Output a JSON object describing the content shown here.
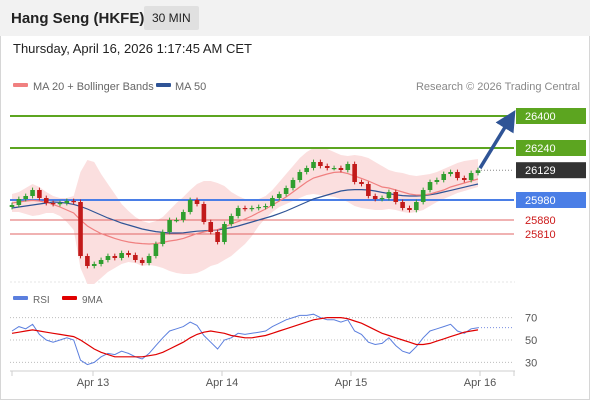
{
  "header": {
    "instrument": "Hang Seng (HKFE)",
    "timeframe": "30 MIN"
  },
  "timestamp": "Thursday, April 16, 2026 1:17:45 AM CET",
  "legend": [
    {
      "label": "MA 20 + Bollinger Bands",
      "color": "#f08080"
    },
    {
      "label": "MA 50",
      "color": "#2f5496"
    }
  ],
  "credit": "Research © 2026 Trading Central",
  "rsi_legend": [
    {
      "label": "RSI",
      "color": "#5b7fde"
    },
    {
      "label": "9MA",
      "color": "#e00000"
    }
  ],
  "colors": {
    "resistance": "#5ca520",
    "pivot": "#4a7ee6",
    "support": "#e06666",
    "last_price": "#333333",
    "candle_up": "#2f9e2f",
    "candle_down": "#c21a1a",
    "bollinger_fill": "#fbdcdc",
    "ma20": "#f08080",
    "ma50": "#2f5496",
    "arrow": "#2f5496"
  },
  "chart_data": [
    {
      "type": "candlestick",
      "title": "",
      "ylim": [
        25570,
        26480
      ],
      "x_ticks": [
        "Apr 13",
        "Apr 14",
        "Apr 15",
        "Apr 16"
      ],
      "last_price": 26129,
      "levels": [
        {
          "value": 26400,
          "label": "26400",
          "kind": "resistance"
        },
        {
          "value": 26240,
          "label": "26240",
          "kind": "resistance"
        },
        {
          "value": 25980,
          "label": "25980",
          "kind": "pivot"
        },
        {
          "value": 25880,
          "label": "25880",
          "kind": "support"
        },
        {
          "value": 25810,
          "label": "25810",
          "kind": "support"
        }
      ],
      "price_path": [
        25955,
        25985,
        26000,
        26030,
        25990,
        25965,
        25960,
        25965,
        25975,
        25970,
        25700,
        25650,
        25660,
        25680,
        25700,
        25690,
        25715,
        25705,
        25680,
        25665,
        25700,
        25760,
        25820,
        25880,
        25880,
        25920,
        25980,
        25960,
        25870,
        25820,
        25770,
        25860,
        25900,
        25940,
        25935,
        25940,
        25945,
        25950,
        25990,
        26010,
        26040,
        26080,
        26120,
        26140,
        26170,
        26150,
        26140,
        26140,
        26130,
        26160,
        26070,
        26060,
        26000,
        25985,
        25990,
        26020,
        25970,
        25940,
        25930,
        25970,
        26030,
        26070,
        26080,
        26110,
        26120,
        26090,
        26080,
        26115,
        26129
      ],
      "ma20": [
        25965,
        25970,
        25975,
        25978,
        25975,
        25968,
        25958,
        25945,
        25930,
        25915,
        25880,
        25850,
        25830,
        25812,
        25800,
        25788,
        25778,
        25770,
        25765,
        25762,
        25760,
        25762,
        25768,
        25775,
        25780,
        25788,
        25800,
        25812,
        25820,
        25828,
        25832,
        25845,
        25860,
        25872,
        25885,
        25900,
        25918,
        25935,
        25955,
        25975,
        25995,
        26020,
        26045,
        26070,
        26090,
        26100,
        26110,
        26118,
        26120,
        26112,
        26100,
        26088,
        26075,
        26060,
        26045,
        26040,
        26030,
        26020,
        26010,
        26005,
        26005,
        26010,
        26020,
        26030,
        26045,
        26055,
        26065,
        26075,
        26085
      ],
      "ma50": [
        25940,
        25945,
        25950,
        25955,
        25960,
        25965,
        25970,
        25968,
        25964,
        25958,
        25948,
        25935,
        25920,
        25905,
        25890,
        25878,
        25865,
        25855,
        25845,
        25835,
        25828,
        25822,
        25818,
        25815,
        25815,
        25816,
        25820,
        25824,
        25826,
        25828,
        25830,
        25836,
        25842,
        25850,
        25860,
        25870,
        25880,
        25890,
        25900,
        25912,
        25925,
        25940,
        25955,
        25970,
        25985,
        25995,
        26005,
        26015,
        26025,
        26030,
        26032,
        26032,
        26030,
        26025,
        26018,
        26012,
        26006,
        26002,
        26000,
        26000,
        26002,
        26006,
        26012,
        26020,
        26028,
        26036,
        26044,
        26052,
        26060
      ],
      "bollinger_upper": [
        26010,
        26020,
        26040,
        26060,
        26045,
        26020,
        26000,
        25990,
        25990,
        26000,
        26120,
        26180,
        26170,
        26110,
        26060,
        26010,
        25960,
        25925,
        25895,
        25875,
        25865,
        25875,
        25895,
        25930,
        25965,
        25995,
        26030,
        26060,
        26075,
        26075,
        26065,
        26050,
        26020,
        26000,
        25985,
        25980,
        25985,
        26000,
        26030,
        26070,
        26110,
        26150,
        26190,
        26220,
        26240,
        26245,
        26235,
        26220,
        26205,
        26200,
        26205,
        26200,
        26190,
        26170,
        26150,
        26130,
        26120,
        26115,
        26105,
        26100,
        26105,
        26110,
        26120,
        26135,
        26150,
        26165,
        26175,
        26180,
        26185
      ],
      "bollinger_lower": [
        25920,
        25920,
        25910,
        25900,
        25905,
        25915,
        25915,
        25900,
        25870,
        25830,
        25640,
        25560,
        25560,
        25590,
        25620,
        25640,
        25660,
        25670,
        25665,
        25650,
        25655,
        25650,
        25640,
        25625,
        25615,
        25610,
        25610,
        25615,
        25630,
        25650,
        25660,
        25680,
        25700,
        25730,
        25760,
        25800,
        25850,
        25890,
        25920,
        25945,
        25960,
        25975,
        25990,
        26005,
        26010,
        26005,
        26000,
        25995,
        25985,
        25970,
        25950,
        25940,
        25935,
        25930,
        25930,
        25935,
        25930,
        25920,
        25915,
        25920,
        25930,
        25950,
        25970,
        25985,
        26000,
        26015,
        26025,
        26035,
        26045
      ],
      "projection": {
        "from": 26129,
        "to": 26400
      }
    },
    {
      "type": "line",
      "title": "",
      "ylim": [
        25,
        75
      ],
      "y_ticks": [
        70,
        50,
        30
      ],
      "x_ticks": [
        "Apr 13",
        "Apr 14",
        "Apr 15",
        "Apr 16"
      ],
      "series": [
        {
          "name": "RSI",
          "values": [
            58,
            62,
            60,
            64,
            55,
            50,
            48,
            50,
            52,
            50,
            32,
            28,
            30,
            35,
            38,
            37,
            40,
            38,
            35,
            33,
            38,
            45,
            52,
            58,
            60,
            62,
            66,
            63,
            54,
            48,
            42,
            50,
            52,
            56,
            55,
            56,
            57,
            58,
            62,
            65,
            68,
            70,
            72,
            72,
            73,
            70,
            68,
            68,
            66,
            68,
            58,
            55,
            48,
            46,
            47,
            52,
            45,
            40,
            38,
            44,
            52,
            58,
            60,
            62,
            64,
            58,
            56,
            60,
            61
          ]
        },
        {
          "name": "9MA",
          "values": [
            56,
            57,
            58,
            59,
            58,
            57,
            56,
            55,
            54,
            53,
            50,
            46,
            42,
            39,
            37,
            35,
            35,
            35,
            35,
            35,
            36,
            37,
            39,
            42,
            45,
            48,
            52,
            55,
            57,
            58,
            57,
            56,
            54,
            53,
            52,
            52,
            53,
            54,
            56,
            58,
            60,
            62,
            64,
            66,
            68,
            69,
            70,
            70,
            70,
            69,
            67,
            65,
            62,
            59,
            56,
            54,
            52,
            50,
            48,
            46,
            46,
            47,
            49,
            51,
            53,
            55,
            57,
            58,
            59
          ]
        }
      ]
    }
  ]
}
